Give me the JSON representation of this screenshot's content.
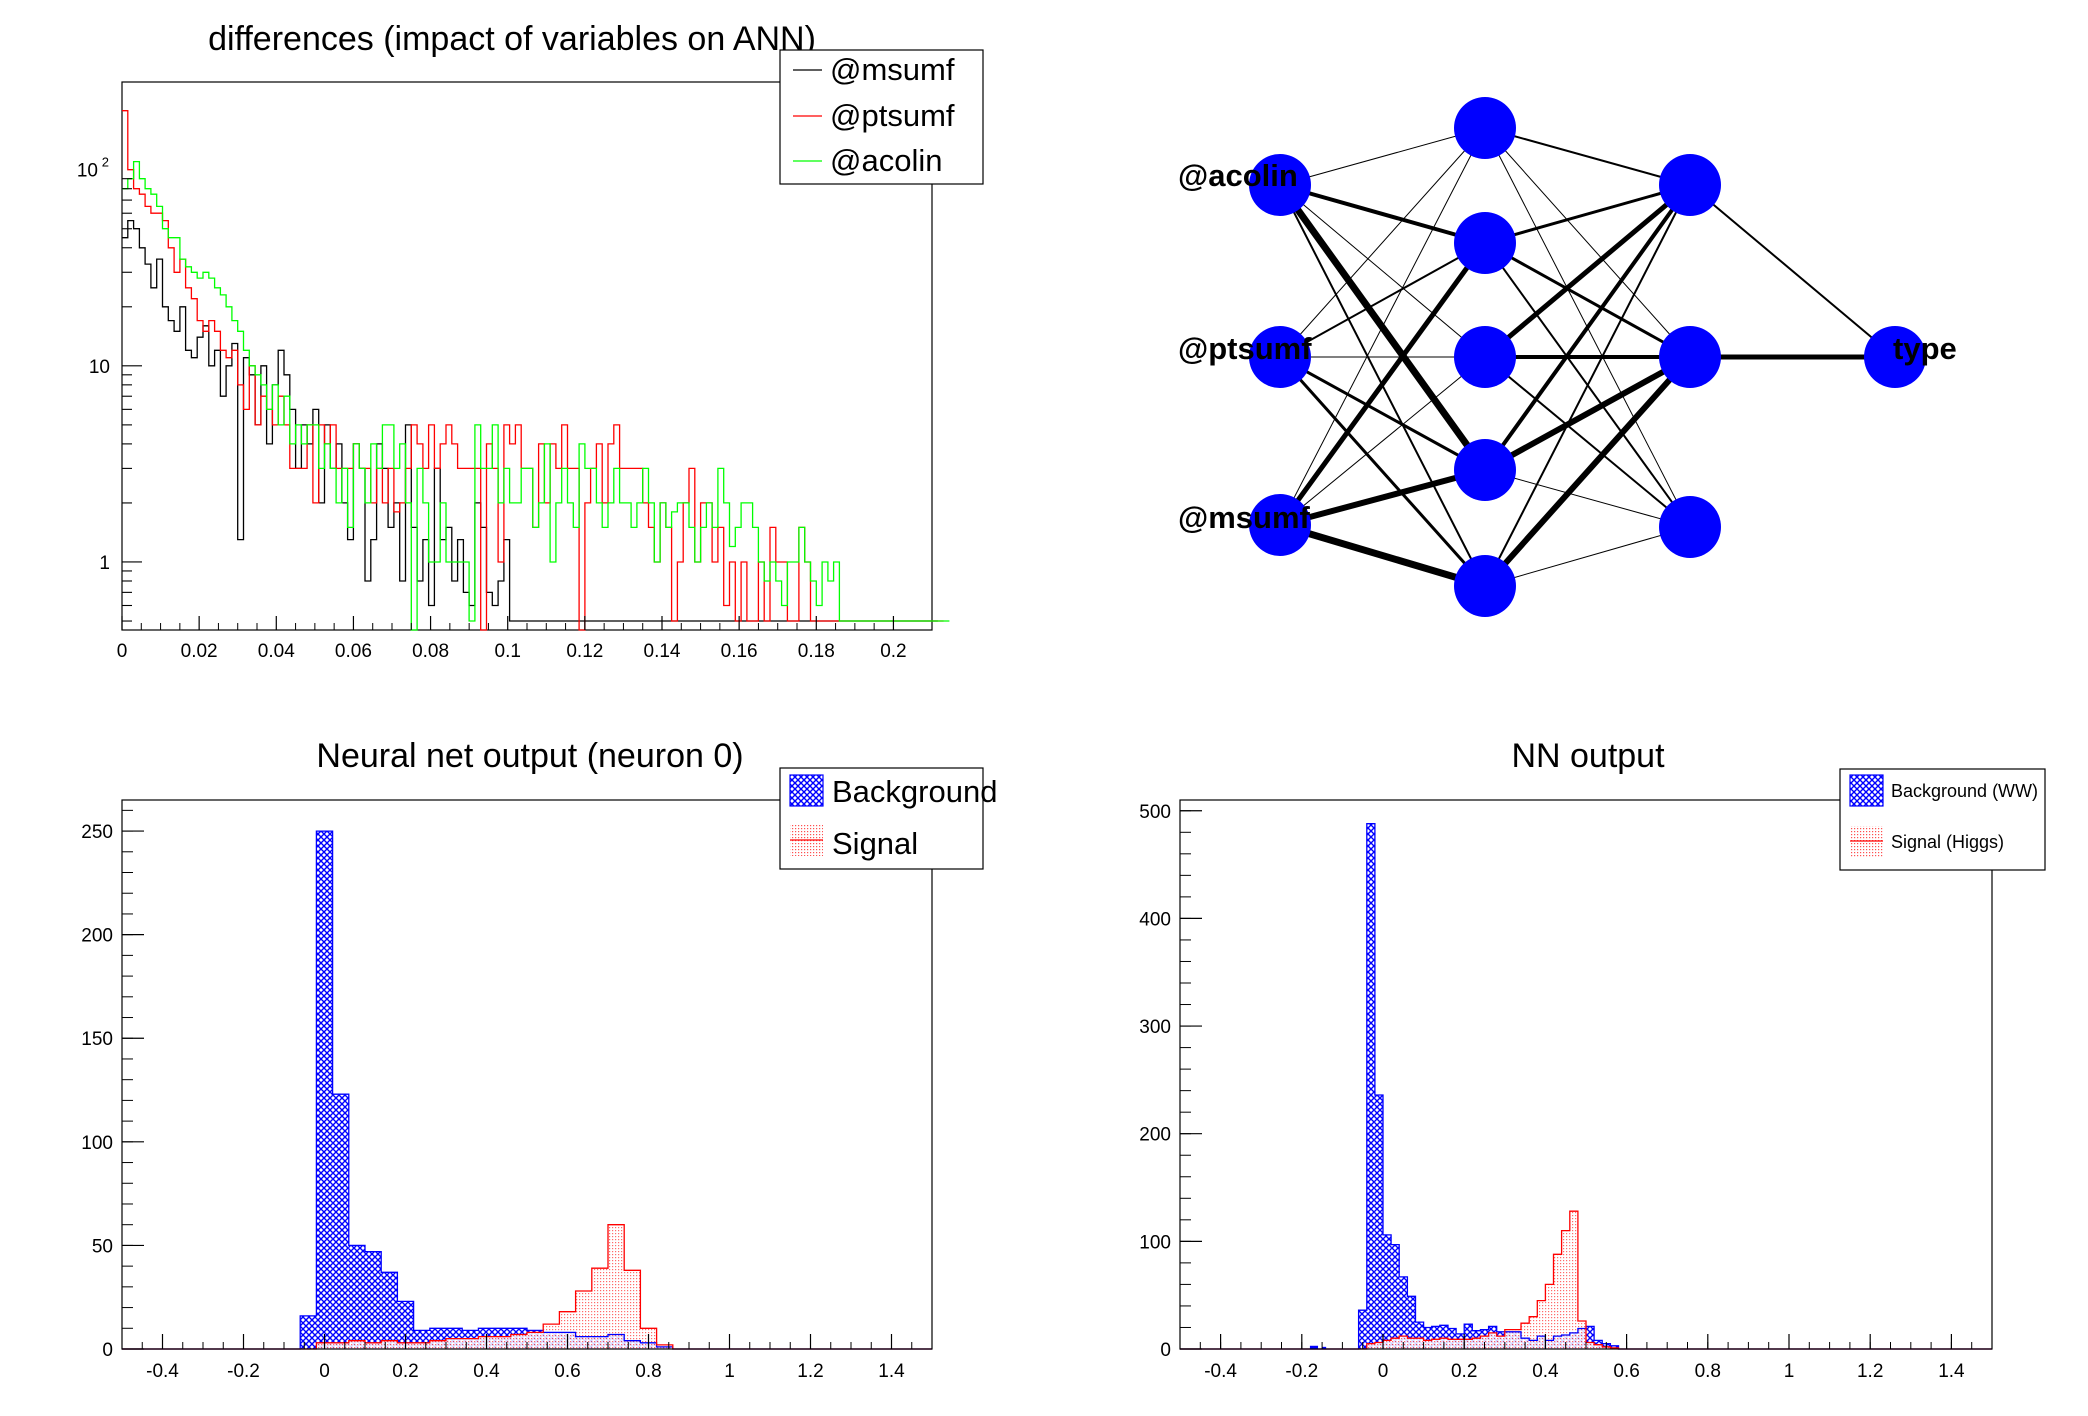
{
  "colors": {
    "black": "#000000",
    "red": "#ff0000",
    "green": "#00ff00",
    "blue": "#0000ff",
    "signal_fill": "#ff4040"
  },
  "chart_data": [
    {
      "type": "line",
      "title": "differences (impact of variables on ANN)",
      "xlim": [
        0,
        0.21
      ],
      "ylim": [
        0.45,
        280
      ],
      "ylog": true,
      "xticks": [
        "0",
        "0.02",
        "0.04",
        "0.06",
        "0.08",
        "0.1",
        "0.12",
        "0.14",
        "0.16",
        "0.18",
        "0.2"
      ],
      "xtick_values": [
        0,
        0.02,
        0.04,
        0.06,
        0.08,
        0.1,
        0.12,
        0.14,
        0.16,
        0.18,
        0.2
      ],
      "yticks": [
        "1",
        "10",
        "10"
      ],
      "ytick_exp": "2",
      "ytick_values": [
        1,
        10,
        100
      ],
      "legend_placement": "top-right",
      "bin_width": 0.0015,
      "series": [
        {
          "name": "@msumf",
          "color": "#000000",
          "values": [
            45,
            55,
            50,
            40,
            33,
            25,
            35,
            20,
            17,
            15,
            20,
            12,
            11,
            14,
            16,
            10,
            12,
            7,
            10,
            13,
            1.3,
            11,
            9,
            5,
            10,
            4,
            8,
            12,
            9,
            6,
            3,
            5,
            4,
            6,
            2,
            5,
            3,
            4,
            2,
            1.3,
            4,
            3,
            0.8,
            1.3,
            4,
            3,
            1.5,
            2,
            0.8,
            5,
            1.5,
            0.8,
            1.3,
            0.6,
            3,
            1.3,
            1.5,
            0.8,
            1.3,
            0.7,
            0.6,
            2,
            1.5,
            0.7,
            0.6,
            0.8,
            1.3,
            0.5,
            0.5,
            0.5,
            0.5,
            0.5,
            0.5,
            0.5,
            0.5,
            0.5,
            0.5,
            0.5,
            0.5,
            0.5,
            0.5,
            0.5,
            0.5,
            0.5,
            0.5,
            0.5,
            0.5,
            0.5,
            0.5,
            0.5,
            0.5,
            0.5,
            0.5,
            0.5,
            0.5,
            0.5,
            0.5,
            0.5,
            0.5,
            0.5,
            0.5,
            0.5,
            0.5,
            0.5,
            0.5,
            0.5,
            0.5,
            0.5,
            0.5,
            0.5,
            0.5,
            0.5,
            0.5,
            0.5,
            0.5,
            0.5,
            0.5,
            0.5,
            0.5,
            0.5,
            0.5,
            0.5,
            0.5,
            0.5,
            0.5,
            0.5,
            0.5,
            0.5,
            0.5,
            0.5,
            0.5,
            0.5,
            0.5,
            0.5,
            0.5,
            0.5,
            0.5,
            0.5,
            0.5,
            0.5,
            0.5
          ]
        },
        {
          "name": "@ptsumf",
          "color": "#ff0000",
          "values": [
            200,
            100,
            80,
            75,
            65,
            60,
            60,
            55,
            40,
            30,
            35,
            25,
            22,
            17,
            15,
            17,
            15,
            12,
            11,
            12,
            8,
            6,
            10,
            5,
            7,
            6,
            5,
            7,
            5,
            3,
            3,
            3,
            5,
            2,
            5,
            4,
            5,
            3,
            3,
            3,
            4,
            3,
            3,
            2,
            3,
            2,
            3,
            1.8,
            2,
            3,
            5,
            4,
            3,
            5,
            3,
            4,
            5,
            4,
            3,
            3,
            3,
            3,
            0.4,
            4,
            3,
            1,
            5,
            4,
            5,
            3,
            3,
            1.5,
            4,
            2,
            4,
            3,
            5,
            3,
            3,
            0.4,
            2,
            3,
            4,
            2,
            4,
            5,
            3,
            3,
            3,
            3,
            2,
            1.5,
            1,
            2,
            1.5,
            0.5,
            1,
            2,
            3,
            1,
            2,
            2,
            1,
            1.5,
            0.6,
            1,
            0.5,
            1,
            0.5,
            0.5,
            1,
            0.5,
            1.5,
            1,
            1,
            0.5,
            0.5,
            1.5,
            1,
            0.5,
            0.5,
            0.5,
            0.5,
            0.5,
            0.5,
            0.5,
            0.5,
            0.5,
            0.5,
            0.5,
            0.5,
            0.5,
            0.5,
            0.5,
            0.5,
            0.5,
            0.5,
            0.5,
            0.5,
            0.5,
            0.5,
            0.5
          ]
        },
        {
          "name": "@acolin",
          "color": "#00ff00",
          "values": [
            80,
            90,
            110,
            90,
            80,
            75,
            65,
            50,
            45,
            45,
            35,
            32,
            30,
            28,
            30,
            28,
            25,
            23,
            20,
            17,
            15,
            12,
            10,
            9,
            8,
            6,
            8,
            5,
            7,
            4,
            5,
            4,
            5,
            5,
            3,
            4,
            3,
            2,
            3,
            1.5,
            4,
            3,
            2,
            4,
            3,
            5,
            5,
            3,
            4,
            2,
            0.4,
            3,
            2,
            1,
            1,
            2,
            1,
            1,
            1,
            1,
            0.5,
            5,
            3,
            3,
            5,
            2,
            3,
            2,
            2,
            3,
            3,
            1.5,
            2,
            4,
            1,
            2,
            3,
            2,
            1.5,
            4,
            3,
            3,
            2,
            1.5,
            2,
            3,
            2,
            2,
            1.5,
            2,
            3,
            2,
            1,
            2,
            1.5,
            1.8,
            2,
            2,
            1.5,
            1,
            1.5,
            2,
            1.5,
            3,
            2,
            1.2,
            1.5,
            2,
            2,
            1.5,
            1,
            0.8,
            1,
            0.8,
            0.6,
            1,
            1,
            1.5,
            1,
            0.8,
            0.6,
            1,
            0.8,
            1,
            0.5,
            0.5,
            0.5,
            0.5,
            0.5,
            0.5,
            0.5,
            0.5,
            0.5,
            0.5,
            0.5,
            0.5,
            0.5,
            0.5,
            0.5,
            0.5,
            0.5,
            0.5,
            0.5
          ]
        }
      ]
    },
    {
      "type": "network",
      "inputs": [
        "@acolin",
        "@ptsumf",
        "@msumf"
      ],
      "output": "type",
      "hidden_layers": [
        5,
        3
      ],
      "weights_layer1": [
        [
          1,
          4,
          1,
          7,
          2
        ],
        [
          1,
          2,
          1,
          3,
          3
        ],
        [
          1,
          5,
          1,
          6,
          7
        ]
      ],
      "weights_layer2": [
        [
          2,
          3,
          5,
          4,
          2
        ],
        [
          1,
          3,
          4,
          6,
          6
        ],
        [
          1,
          2,
          2,
          1,
          1
        ]
      ],
      "weights_layer3": [
        [
          2
        ],
        [
          5
        ],
        [
          0
        ]
      ]
    },
    {
      "type": "bar",
      "title": "Neural net output (neuron 0)",
      "xlim": [
        -0.5,
        1.5
      ],
      "ylim": [
        0,
        265
      ],
      "xticks": [
        "-0.4",
        "-0.2",
        "0",
        "0.2",
        "0.4",
        "0.6",
        "0.8",
        "1",
        "1.2",
        "1.4"
      ],
      "xtick_values": [
        -0.4,
        -0.2,
        0,
        0.2,
        0.4,
        0.6,
        0.8,
        1,
        1.2,
        1.4
      ],
      "yticks": [
        "0",
        "50",
        "100",
        "150",
        "200",
        "250"
      ],
      "ytick_values": [
        0,
        50,
        100,
        150,
        200,
        250
      ],
      "legend_placement": "top-right",
      "bin_start": -0.06,
      "bin_width": 0.04,
      "series": [
        {
          "name": "Background",
          "color": "#0000ff",
          "values": [
            16,
            250,
            123,
            50,
            47,
            37,
            23,
            9,
            10,
            10,
            9,
            10,
            10,
            10,
            9,
            8,
            8,
            6,
            6,
            7,
            4,
            3,
            1
          ]
        },
        {
          "name": "Signal",
          "color": "#ff0000",
          "values": [
            0,
            3,
            3,
            4,
            3,
            4,
            3,
            3,
            4,
            5,
            5,
            6,
            6,
            7,
            8,
            12,
            18,
            28,
            39,
            60,
            38,
            10,
            2
          ]
        }
      ]
    },
    {
      "type": "bar",
      "title": "NN output",
      "xlim": [
        -0.5,
        1.5
      ],
      "ylim": [
        0,
        510
      ],
      "xticks": [
        "-0.4",
        "-0.2",
        "0",
        "0.2",
        "0.4",
        "0.6",
        "0.8",
        "1",
        "1.2",
        "1.4"
      ],
      "xtick_values": [
        -0.4,
        -0.2,
        0,
        0.2,
        0.4,
        0.6,
        0.8,
        1,
        1.2,
        1.4
      ],
      "yticks": [
        "0",
        "100",
        "200",
        "300",
        "400",
        "500"
      ],
      "ytick_values": [
        0,
        100,
        200,
        300,
        400,
        500
      ],
      "legend_placement": "top-right",
      "bin_start": -0.06,
      "bin_width": 0.02,
      "series": [
        {
          "name": "Background (WW)",
          "color": "#0000ff",
          "values": [
            36,
            488,
            236,
            106,
            97,
            67,
            49,
            25,
            20,
            21,
            22,
            19,
            14,
            23,
            17,
            18,
            21,
            16,
            16,
            16,
            10,
            8,
            12,
            8,
            12,
            13,
            15,
            19,
            21,
            8,
            5,
            3
          ]
        },
        {
          "name": "Signal (Higgs)",
          "color": "#ff0000",
          "values": [
            0,
            5,
            6,
            8,
            10,
            12,
            10,
            10,
            8,
            9,
            10,
            9,
            9,
            9,
            10,
            12,
            15,
            12,
            18,
            18,
            24,
            30,
            45,
            60,
            88,
            110,
            128,
            26,
            6,
            4,
            2,
            1
          ]
        }
      ],
      "extra_bg_bins": [
        [
          -0.18,
          3
        ],
        [
          -0.17,
          3
        ],
        [
          -0.15,
          2
        ]
      ]
    }
  ]
}
